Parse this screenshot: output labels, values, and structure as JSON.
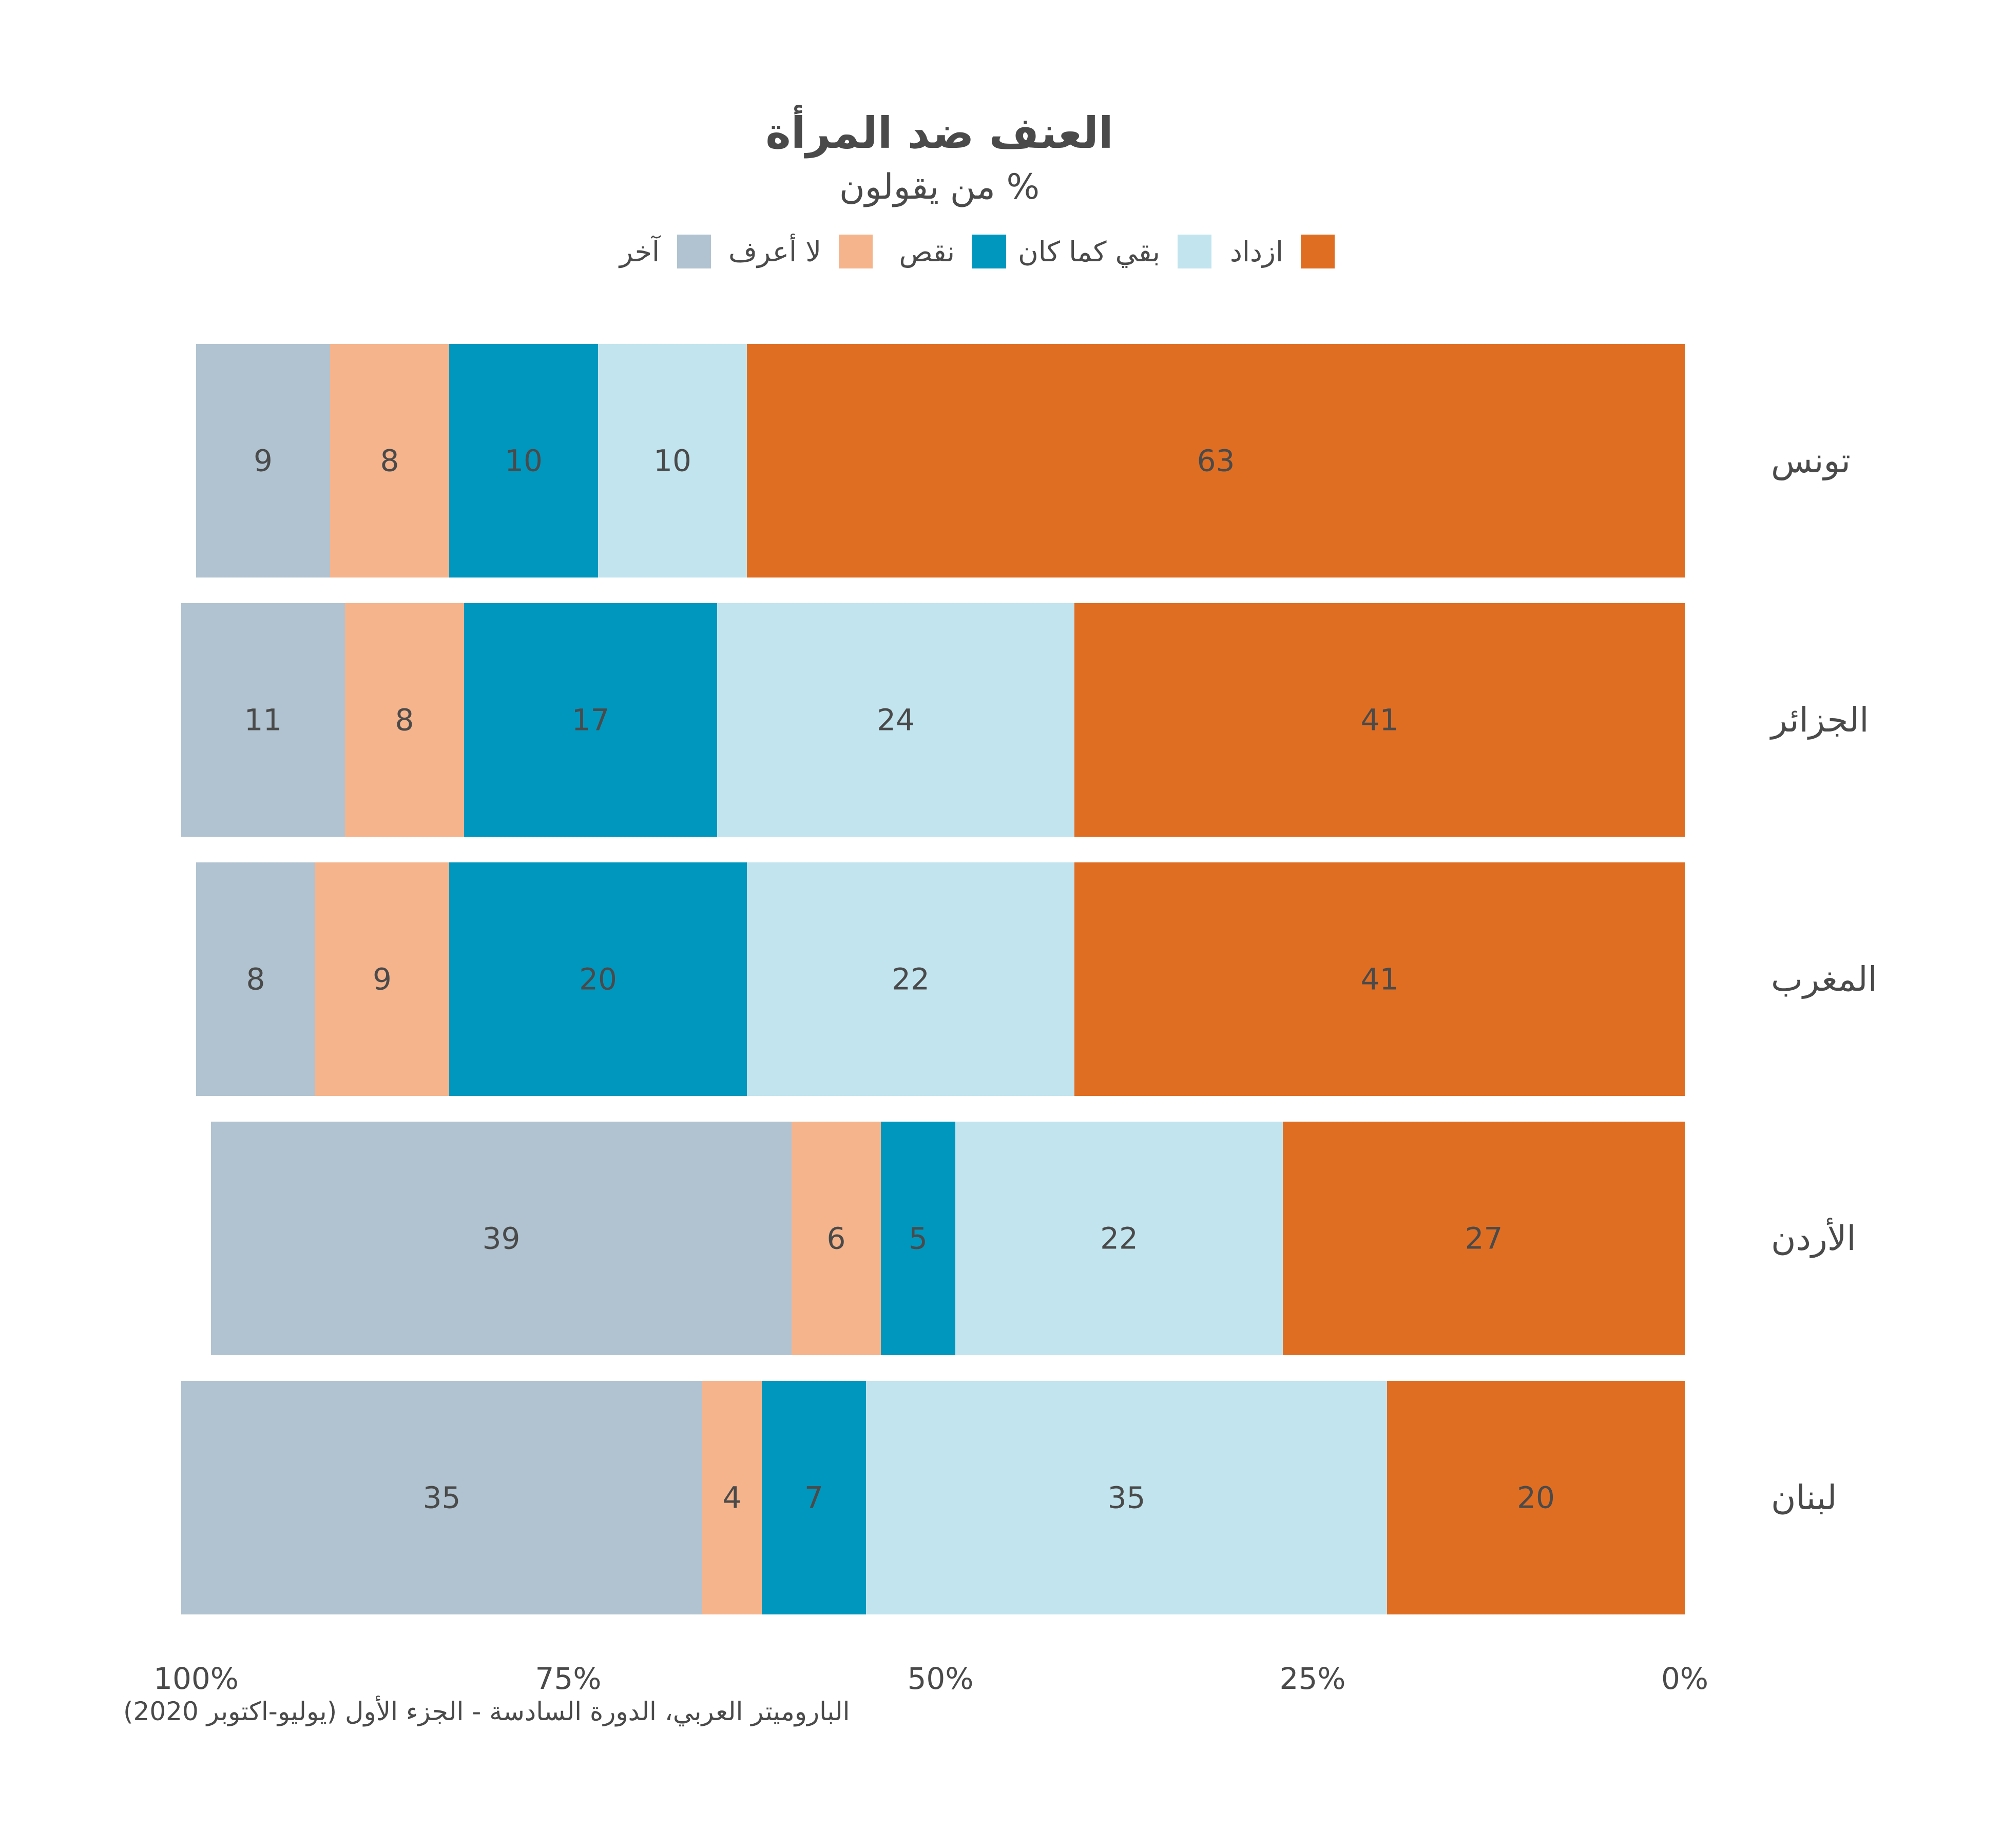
{
  "chart_data": {
    "type": "bar",
    "orientation": "horizontal",
    "stacked": true,
    "title": "العنف ضد المرأة",
    "subtitle": "% من يقولون",
    "categories": [
      "تونس",
      "الجزائر",
      "المغرب",
      "الأردن",
      "لبنان"
    ],
    "series": [
      {
        "name": "ازداد",
        "color": "#e06e22",
        "values": [
          63,
          41,
          41,
          27,
          20
        ]
      },
      {
        "name": "بقي كما كان",
        "color": "#c1e4ee",
        "values": [
          10,
          24,
          22,
          22,
          35
        ]
      },
      {
        "name": "نقص",
        "color": "#0097bf",
        "values": [
          10,
          17,
          20,
          5,
          7
        ]
      },
      {
        "name": "لا أعرف",
        "color": "#f5b48c",
        "values": [
          8,
          8,
          9,
          6,
          4
        ]
      },
      {
        "name": "آخر",
        "color": "#b1c3d0",
        "values": [
          9,
          11,
          8,
          39,
          35
        ]
      }
    ],
    "x_ticks": [
      "100%",
      "75%",
      "50%",
      "25%",
      "0%"
    ],
    "xlim": [
      0,
      100
    ],
    "x_direction": "reversed",
    "legend_position": "top",
    "grid": false,
    "source": "الباروميتر العربي، الدورة السادسة - الجزء الأول (يوليو-اكتوبر 2020)"
  }
}
